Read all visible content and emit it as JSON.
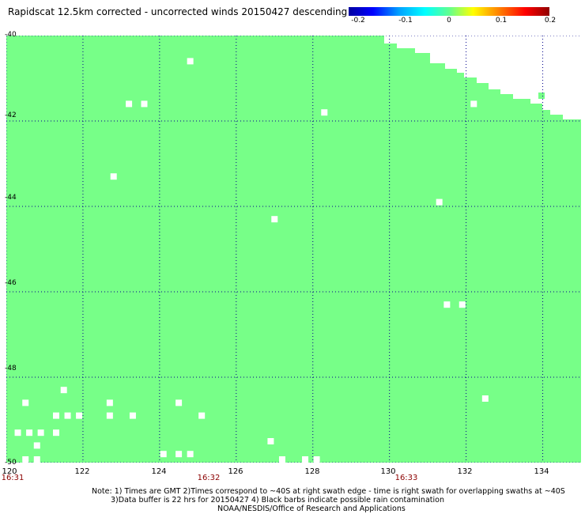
{
  "title": "Rapidscat 12.5km corrected - uncorrected winds 20150427 descending",
  "colorbar": {
    "ticks": [
      "-0.2",
      "-0.1",
      "0",
      "0.1",
      "0.2"
    ],
    "range": [
      -0.2,
      0.2
    ]
  },
  "colors": {
    "land_or_zero": "#77ff88",
    "missing": "#ffffff",
    "grid": "#00008b"
  },
  "map": {
    "lon_range": [
      120,
      135
    ],
    "lat_range": [
      -50,
      -40
    ],
    "lat_labels": [
      "-40",
      "-42",
      "-44",
      "-46",
      "-48",
      "-50"
    ],
    "lon_labels": [
      "120",
      "122",
      "124",
      "126",
      "128",
      "130",
      "132",
      "134"
    ],
    "time_labels": [
      "16:31",
      "16:32",
      "16:33"
    ],
    "missing_cells": [
      [
        124.8,
        -40.6
      ],
      [
        123.2,
        -41.6
      ],
      [
        123.6,
        -41.6
      ],
      [
        128.3,
        -41.8
      ],
      [
        132.2,
        -41.6
      ],
      [
        122.8,
        -43.3
      ],
      [
        131.3,
        -43.9
      ],
      [
        127.0,
        -44.3
      ],
      [
        131.5,
        -46.3
      ],
      [
        131.9,
        -46.3
      ],
      [
        121.5,
        -48.3
      ],
      [
        120.5,
        -48.6
      ],
      [
        132.5,
        -48.5
      ],
      [
        122.7,
        -48.6
      ],
      [
        124.5,
        -48.6
      ],
      [
        121.3,
        -48.9
      ],
      [
        121.6,
        -48.9
      ],
      [
        121.9,
        -48.9
      ],
      [
        122.7,
        -48.9
      ],
      [
        123.3,
        -48.9
      ],
      [
        125.1,
        -48.9
      ],
      [
        120.3,
        -49.3
      ],
      [
        120.6,
        -49.3
      ],
      [
        120.9,
        -49.3
      ],
      [
        121.3,
        -49.3
      ],
      [
        120.8,
        -49.6
      ],
      [
        126.9,
        -49.5
      ],
      [
        124.1,
        -49.8
      ],
      [
        124.5,
        -49.8
      ],
      [
        124.8,
        -49.8
      ],
      [
        120.5,
        -50.0
      ],
      [
        120.8,
        -50.0
      ],
      [
        127.2,
        -50.0
      ],
      [
        127.8,
        -50.0
      ],
      [
        128.1,
        -50.0
      ]
    ]
  },
  "notes": [
    "Note: 1) Times are GMT 2)Times correspond to ~40S at right swath edge - time is right swath for overlapping swaths at ~40S",
    "3)Data buffer is 22 hrs for 20150427 4) Black barbs indicate possible rain contamination",
    "NOAA/NESDIS/Office of Research and Applications"
  ]
}
